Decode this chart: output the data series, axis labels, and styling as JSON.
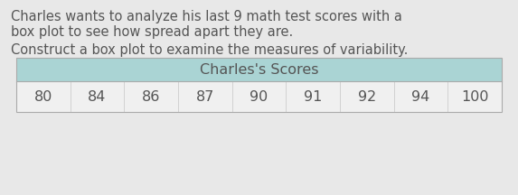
{
  "line1": "Charles wants to analyze his last 9 math test scores with a",
  "line2": "box plot to see how spread apart they are.",
  "line3": "Construct a box plot to examine the measures of variability.",
  "table_header": "Charles's Scores",
  "scores": [
    80,
    84,
    86,
    87,
    90,
    91,
    92,
    94,
    100
  ],
  "bg_color": "#e8e8e8",
  "text_color": "#555555",
  "table_header_bg": "#aad4d4",
  "table_row_bg": "#f0f0f0",
  "table_border_color": "#aaaaaa",
  "text_fontsize": 10.5,
  "table_fontsize": 11.5
}
